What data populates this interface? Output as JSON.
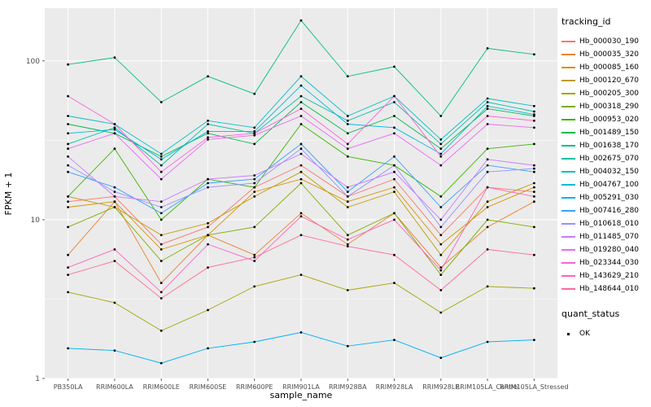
{
  "panel": {
    "background": "#EBEBEB",
    "grid_color": "#FFFFFF",
    "tick_label_color": "#4D4D4D",
    "tick_mark_color": "#333333"
  },
  "chart_data": {
    "type": "line",
    "title": "",
    "xlabel": "sample_name",
    "ylabel": "FPKM + 1",
    "y_scale": "log10",
    "y_ticks": [
      1,
      10,
      100
    ],
    "y_minor_ticks": [
      3.1623,
      31.623
    ],
    "ylim": [
      1,
      215
    ],
    "legend_position": "right",
    "legend_title": "tracking_id",
    "quant_legend": {
      "title": "quant_status",
      "items": [
        {
          "label": "OK"
        }
      ]
    },
    "categories": [
      "PB350LA",
      "RRIM600LA",
      "RRIM600LE",
      "RRIM600SE",
      "RRIM600PE",
      "RRIM901LA",
      "RRIM928BA",
      "RRIM928LA",
      "RRIM928LE",
      "RRIM105LA_Control",
      "RRIM105LA_Stressed"
    ],
    "series": [
      {
        "name": "Hb_000030_190",
        "color": "#F8766D",
        "values": [
          13,
          14,
          7,
          9,
          16,
          22,
          14,
          18,
          8,
          16,
          15
        ]
      },
      {
        "name": "Hb_000035_320",
        "color": "#EA8331",
        "values": [
          6,
          13,
          4,
          8,
          6,
          11,
          7,
          11,
          5,
          9,
          13
        ]
      },
      {
        "name": "Hb_000085_160",
        "color": "#D89000",
        "values": [
          12,
          13,
          6.5,
          8,
          15,
          18,
          13,
          16,
          7,
          12,
          16
        ]
      },
      {
        "name": "Hb_000120_670",
        "color": "#C09B00",
        "values": [
          14,
          12,
          8,
          9.5,
          14,
          20,
          12,
          15,
          6,
          13,
          17
        ]
      },
      {
        "name": "Hb_000205_300",
        "color": "#A3A500",
        "values": [
          3.5,
          3,
          2,
          2.7,
          3.8,
          4.5,
          3.6,
          4,
          2.6,
          3.8,
          3.7
        ]
      },
      {
        "name": "Hb_000318_290",
        "color": "#7CAE00",
        "values": [
          9,
          12,
          5.5,
          8,
          9,
          17,
          8,
          11,
          4.5,
          10,
          9
        ]
      },
      {
        "name": "Hb_000953_020",
        "color": "#39B600",
        "values": [
          14,
          28,
          10,
          18,
          16,
          40,
          25,
          22,
          14,
          28,
          30
        ]
      },
      {
        "name": "Hb_001489_150",
        "color": "#00BB4E",
        "values": [
          40,
          35,
          25,
          35,
          30,
          55,
          35,
          45,
          28,
          50,
          45
        ]
      },
      {
        "name": "Hb_001638_170",
        "color": "#00BF7D",
        "values": [
          95,
          105,
          55,
          80,
          62,
          180,
          80,
          92,
          45,
          120,
          110
        ]
      },
      {
        "name": "Hb_002675_070",
        "color": "#00C1A3",
        "values": [
          30,
          38,
          22,
          40,
          35,
          60,
          42,
          55,
          30,
          55,
          48
        ]
      },
      {
        "name": "Hb_004032_150",
        "color": "#00BFC4",
        "values": [
          45,
          40,
          26,
          42,
          38,
          80,
          45,
          60,
          32,
          58,
          52
        ]
      },
      {
        "name": "Hb_004767_100",
        "color": "#00BAE0",
        "values": [
          35,
          37,
          24,
          36,
          36,
          70,
          40,
          38,
          26,
          52,
          46
        ]
      },
      {
        "name": "Hb_005291_030",
        "color": "#00B0F6",
        "values": [
          1.55,
          1.5,
          1.25,
          1.55,
          1.7,
          1.95,
          1.6,
          1.75,
          1.35,
          1.7,
          1.75
        ]
      },
      {
        "name": "Hb_007416_280",
        "color": "#35A2FF",
        "values": [
          20,
          16,
          11,
          17,
          18,
          30,
          15,
          25,
          12,
          22,
          20
        ]
      },
      {
        "name": "Hb_010618_010",
        "color": "#9590FF",
        "values": [
          22,
          15,
          12,
          16,
          17,
          28,
          14,
          22,
          9,
          20,
          21
        ]
      },
      {
        "name": "Hb_011485_070",
        "color": "#C77CFF",
        "values": [
          25,
          14,
          13,
          18,
          19,
          26,
          16,
          20,
          10,
          24,
          22
        ]
      },
      {
        "name": "Hb_019280_040",
        "color": "#E76BF3",
        "values": [
          28,
          35,
          18,
          32,
          34,
          45,
          28,
          35,
          22,
          40,
          38
        ]
      },
      {
        "name": "Hb_023344_030",
        "color": "#FA62DB",
        "values": [
          60,
          40,
          20,
          33,
          35,
          50,
          30,
          60,
          25,
          45,
          42
        ]
      },
      {
        "name": "Hb_143629_210",
        "color": "#FF62BC",
        "values": [
          5,
          6.5,
          3.5,
          7,
          5.5,
          10.5,
          7.5,
          10,
          4.8,
          16,
          14
        ]
      },
      {
        "name": "Hb_148644_010",
        "color": "#FF6A98",
        "values": [
          4.5,
          5.5,
          3.2,
          5,
          5.8,
          8,
          6.8,
          6,
          3.6,
          6.5,
          6
        ]
      }
    ]
  }
}
